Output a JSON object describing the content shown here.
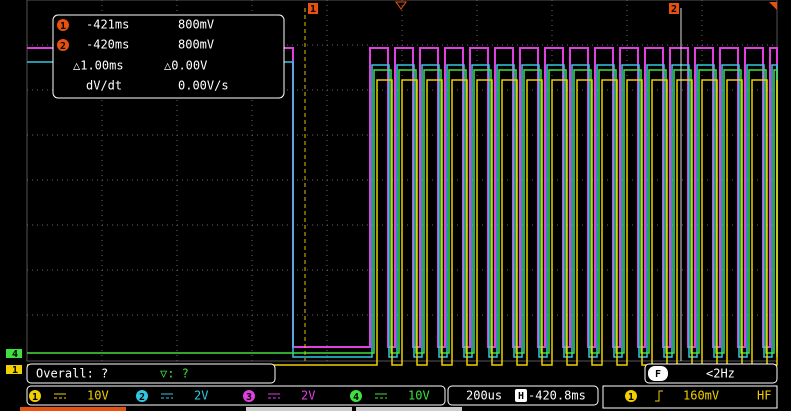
{
  "cursor_readout": {
    "rows": [
      {
        "marker": "1",
        "time": "-421ms",
        "volt": "800mV"
      },
      {
        "marker": "2",
        "time": "-420ms",
        "volt": "800mV"
      }
    ],
    "delta_time": "△1.00ms",
    "delta_volt": "△0.00V",
    "rate_label": "dV/dt",
    "rate": "0.00V/s"
  },
  "cursor_markers": [
    "1",
    "2"
  ],
  "level_markers": [
    "4",
    "1"
  ],
  "status": {
    "measure": "Overall: ?",
    "trigger_state": "▽: ?",
    "filter": "F",
    "frequency": "<2Hz"
  },
  "channels": [
    {
      "number": "1",
      "scale": "10V",
      "color": "#f0d000"
    },
    {
      "number": "2",
      "scale": "2V",
      "color": "#30c8e0"
    },
    {
      "number": "3",
      "scale": "2V",
      "color": "#e040e0"
    },
    {
      "number": "4",
      "scale": "10V",
      "color": "#40e040"
    }
  ],
  "timebase": {
    "scale": "200us",
    "offset_icon": "H",
    "offset": "-420.8ms"
  },
  "trigger": {
    "source": "1",
    "level": "160mV",
    "coupling": "HF"
  }
}
